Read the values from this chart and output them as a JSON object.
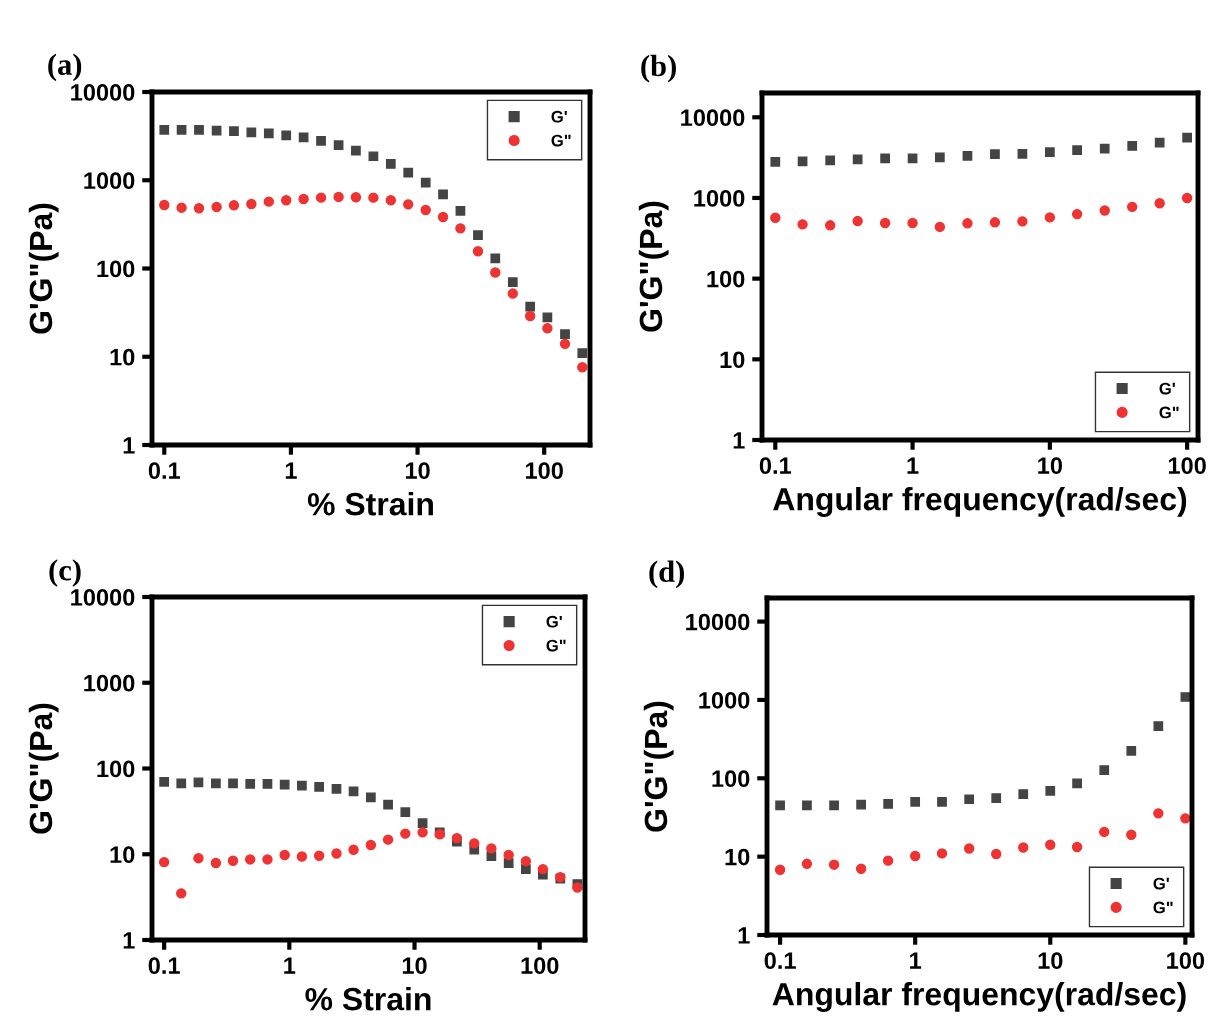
{
  "chart_data": [
    {
      "type": "scatter",
      "title": "(a)",
      "xlabel": "% Strain",
      "ylabel": "G'G\"(Pa)",
      "log": "xy",
      "legend": "top right",
      "grid": false,
      "x": [
        0.1,
        0.137,
        0.188,
        0.259,
        0.355,
        0.487,
        0.669,
        0.918,
        1.26,
        1.73,
        2.38,
        3.26,
        4.48,
        6.15,
        8.44,
        11.6,
        15.9,
        21.8,
        30.0,
        41.1,
        56.5,
        77.5,
        106,
        146,
        200
      ],
      "xlim": [
        0.08,
        230
      ],
      "ylim": [
        1,
        10000
      ],
      "xticks": [
        0.1,
        1,
        10,
        100
      ],
      "yticks": [
        1,
        10,
        100,
        1000,
        10000
      ],
      "series": [
        {
          "name": "G'",
          "color": "#444444",
          "marker": "square",
          "values": [
            3730,
            3730,
            3730,
            3660,
            3600,
            3480,
            3390,
            3220,
            3060,
            2800,
            2500,
            2170,
            1870,
            1530,
            1220,
            940,
            690,
            450,
            239,
            130,
            70,
            37,
            28,
            18,
            11
          ]
        },
        {
          "name": "G\"",
          "color": "#ee3333",
          "marker": "circle",
          "values": [
            525,
            489,
            481,
            497,
            520,
            538,
            573,
            593,
            614,
            635,
            647,
            641,
            635,
            593,
            533,
            460,
            383,
            285,
            157,
            90,
            52,
            29,
            21,
            14,
            7.6
          ]
        }
      ]
    },
    {
      "type": "scatter",
      "title": "(b)",
      "xlabel": "Angular frequency(rad/sec)",
      "ylabel": "G'G\"(Pa)",
      "log": "xy",
      "legend": "bottom right",
      "grid": false,
      "x": [
        0.1,
        0.158,
        0.251,
        0.398,
        0.631,
        1,
        1.58,
        2.51,
        3.98,
        6.31,
        10,
        15.8,
        25.1,
        39.8,
        63.1,
        100
      ],
      "xlim": [
        0.08,
        120
      ],
      "ylim": [
        1,
        20000
      ],
      "xticks": [
        0.1,
        1,
        10,
        100
      ],
      "yticks": [
        1,
        10,
        100,
        1000,
        10000
      ],
      "series": [
        {
          "name": "G'",
          "color": "#444444",
          "marker": "square",
          "values": [
            2810,
            2840,
            2920,
            3000,
            3090,
            3090,
            3180,
            3330,
            3490,
            3520,
            3690,
            3910,
            4090,
            4410,
            4850,
            5580
          ]
        },
        {
          "name": "G\"",
          "color": "#ee3333",
          "marker": "circle",
          "values": [
            569,
            471,
            458,
            517,
            490,
            490,
            438,
            485,
            499,
            513,
            574,
            631,
            700,
            776,
            861,
            1000
          ]
        }
      ]
    },
    {
      "type": "scatter",
      "title": "(c)",
      "xlabel": "% Strain",
      "ylabel": "G'G\"(Pa)",
      "log": "xy",
      "legend": "top right",
      "grid": false,
      "x": [
        0.1,
        0.137,
        0.188,
        0.259,
        0.355,
        0.487,
        0.669,
        0.918,
        1.26,
        1.73,
        2.38,
        3.26,
        4.48,
        6.15,
        8.44,
        11.6,
        15.9,
        21.8,
        30.0,
        41.1,
        56.5,
        77.5,
        106,
        146,
        200
      ],
      "xlim": [
        0.08,
        230
      ],
      "ylim": [
        1,
        10000
      ],
      "xticks": [
        0.1,
        1,
        10,
        100
      ],
      "yticks": [
        1,
        10,
        100,
        1000,
        10000
      ],
      "series": [
        {
          "name": "G'",
          "color": "#444444",
          "marker": "square",
          "values": [
            70,
            67,
            69,
            67,
            67,
            66,
            66,
            65,
            63,
            61,
            58,
            54,
            46,
            38,
            31,
            23,
            18,
            14,
            11.3,
            9.5,
            7.9,
            6.7,
            5.8,
            5.2,
            4.5
          ]
        },
        {
          "name": "G\"",
          "color": "#ee3333",
          "marker": "circle",
          "values": [
            8.1,
            3.5,
            9.0,
            7.9,
            8.4,
            8.7,
            8.7,
            9.8,
            9.4,
            9.6,
            10.2,
            11.3,
            12.8,
            14.8,
            17.4,
            18.0,
            17.1,
            15.4,
            13.4,
            11.7,
            9.8,
            8.3,
            6.7,
            5.4,
            4.1
          ]
        }
      ]
    },
    {
      "type": "scatter",
      "title": "(d)",
      "xlabel": "Angular frequency(rad/sec)",
      "ylabel": "G'G\"(Pa)",
      "log": "xy",
      "legend": "bottom right",
      "grid": false,
      "x": [
        0.1,
        0.158,
        0.251,
        0.398,
        0.631,
        1,
        1.58,
        2.51,
        3.98,
        6.31,
        10,
        15.8,
        25.1,
        39.8,
        63.1,
        100
      ],
      "xlim": [
        0.08,
        112
      ],
      "ylim": [
        1,
        20000
      ],
      "xticks": [
        0.1,
        1,
        10,
        100
      ],
      "yticks": [
        1,
        10,
        100,
        1000,
        10000
      ],
      "series": [
        {
          "name": "G'",
          "color": "#444444",
          "marker": "square",
          "values": [
            45,
            45,
            45,
            46,
            47,
            50,
            50,
            54,
            56,
            63,
            69,
            86,
            127,
            224,
            464,
            1090
          ]
        },
        {
          "name": "G\"",
          "color": "#ee3333",
          "marker": "circle",
          "values": [
            6.8,
            8.1,
            7.9,
            7.0,
            8.9,
            10.2,
            11.0,
            12.7,
            10.8,
            13.1,
            14.2,
            13.3,
            20.7,
            19.0,
            35.7,
            30.8
          ]
        }
      ]
    }
  ]
}
